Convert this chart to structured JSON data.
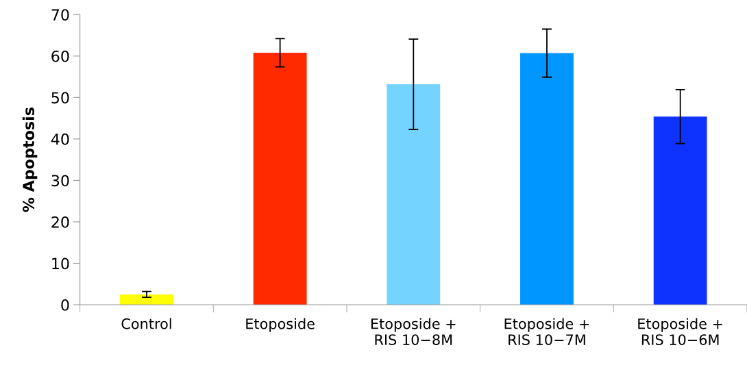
{
  "chart_data": {
    "type": "bar",
    "ylabel": "% Apoptosis",
    "categories": [
      "Control",
      "Etoposide",
      "Etoposide +\nRIS 10−8M",
      "Etoposide +\nRIS 10−7M",
      "Etoposide +\nRIS 10−6M"
    ],
    "values": [
      2.5,
      60.8,
      53.2,
      60.7,
      45.4
    ],
    "errors": [
      0.7,
      3.4,
      10.9,
      5.8,
      6.5
    ],
    "colors": [
      "#ffff00",
      "#ff2a00",
      "#75d3ff",
      "#0096ff",
      "#0f33ff"
    ],
    "ylim": [
      0,
      70
    ],
    "yticks": [
      0,
      10,
      20,
      30,
      40,
      50,
      60,
      70
    ],
    "grid": false,
    "legend": false
  }
}
